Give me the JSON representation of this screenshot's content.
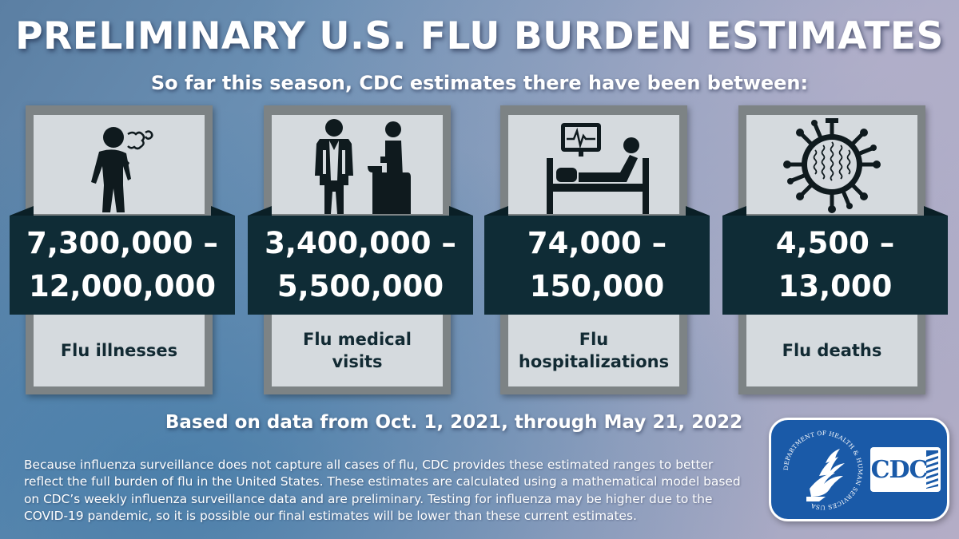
{
  "header": {
    "title": "PRELIMINARY U.S. FLU BURDEN ESTIMATES",
    "subtitle": "So far this season, CDC estimates there have been between:"
  },
  "cards": [
    {
      "icon": "person-coughing-icon",
      "range_low": "7,300,000 –",
      "range_high": "12,000,000",
      "label": "Flu illnesses"
    },
    {
      "icon": "doctor-patient-icon",
      "range_low": "3,400,000 –",
      "range_high": "5,500,000",
      "label": "Flu medical visits"
    },
    {
      "icon": "hospital-bed-icon",
      "range_low": "74,000 –",
      "range_high": "150,000",
      "label": "Flu hospitalizations"
    },
    {
      "icon": "virus-icon",
      "range_low": "4,500 –",
      "range_high": "13,000",
      "label": "Flu deaths"
    }
  ],
  "footer": {
    "date_range": "Based on data from Oct. 1, 2021, through May 21, 2022",
    "disclaimer": "Because influenza surveillance does not capture all cases of flu, CDC provides these estimated ranges to better reflect the full burden of flu in the United States. These estimates are calculated using a mathematical model based on CDC’s weekly influenza surveillance data and are preliminary. Testing for influenza may be higher due to the COVID-19 pandemic, so it is possible our final estimates will be lower than these current estimates."
  },
  "logos": {
    "hhs_seal_text": "DEPARTMENT OF HEALTH & HUMAN SERVICES USA",
    "cdc_text": "CDC"
  },
  "colors": {
    "band": "#0f2c36",
    "panel": "#d5dade",
    "frame": "#7d8385",
    "cdc_blue": "#1a5aa8"
  }
}
